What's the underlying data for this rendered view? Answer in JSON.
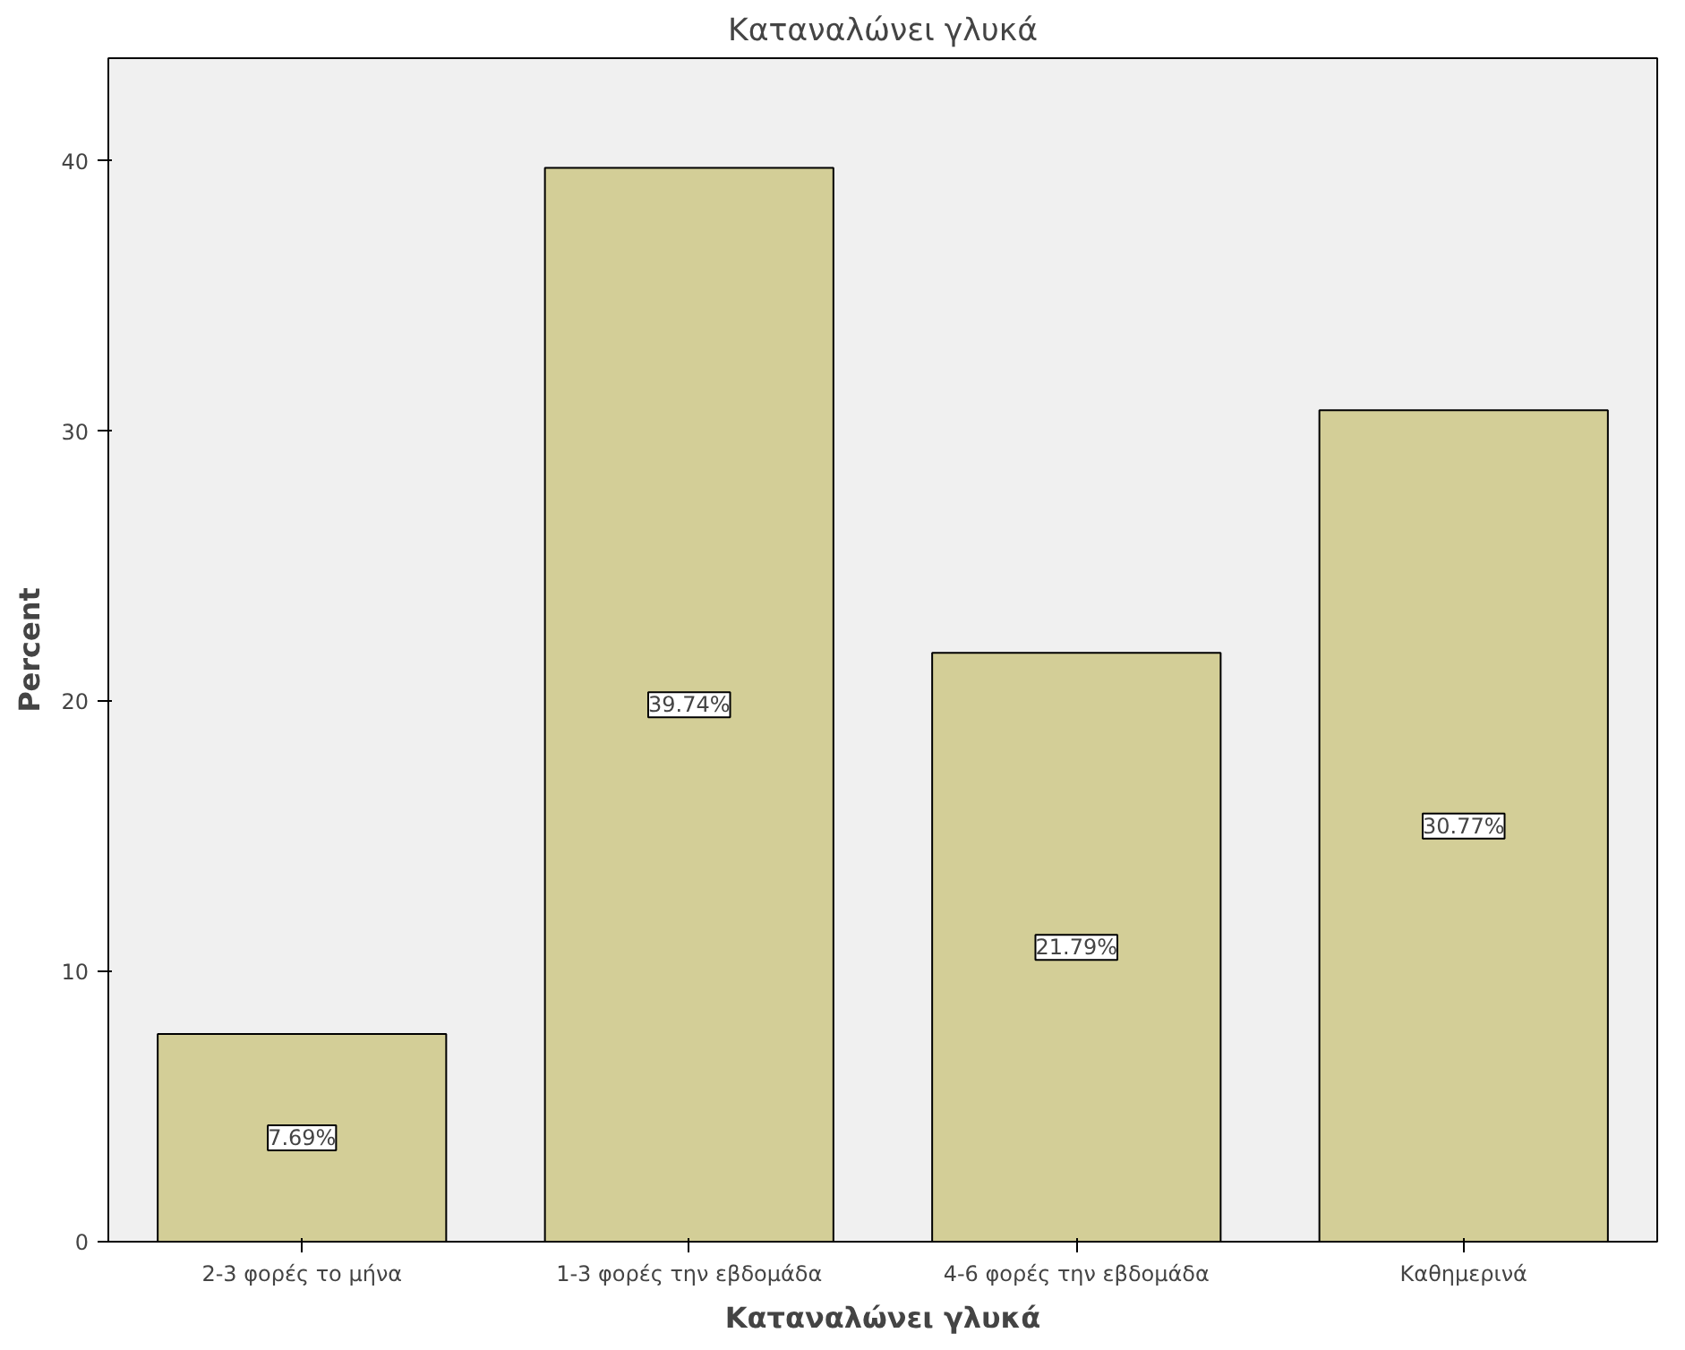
{
  "chart_data": {
    "type": "bar",
    "title": "Καταναλώνει γλυκά",
    "xlabel": "Καταναλώνει γλυκά",
    "ylabel": "Percent",
    "categories": [
      "2-3 φορές το μήνα",
      "1-3 φορές την εβδομάδα",
      "4-6 φορές την εβδομάδα",
      "Καθημερινά"
    ],
    "values": [
      7.69,
      39.74,
      21.79,
      30.77
    ],
    "value_labels": [
      "7.69%",
      "39.74%",
      "21.79%",
      "30.77%"
    ],
    "color": "#d3ce97",
    "ylim": [
      0,
      43.8
    ],
    "yticks": [
      0,
      10,
      20,
      30,
      40
    ],
    "grid": false
  }
}
